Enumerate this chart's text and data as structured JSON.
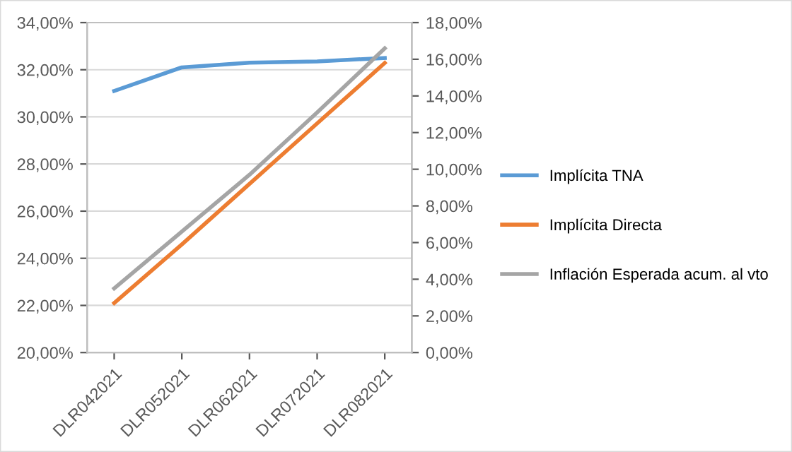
{
  "chart_data": {
    "type": "line",
    "categories": [
      "DLR042021",
      "DLR052021",
      "DLR062021",
      "DLR072021",
      "DLR082021"
    ],
    "series": [
      {
        "name": "Implícita TNA",
        "color": "#5b9bd5",
        "values": [
          31.1,
          32.1,
          32.3,
          32.35,
          32.5
        ]
      },
      {
        "name": "Implícita Directa",
        "color": "#ed7d31",
        "values": [
          2.7,
          5.9,
          9.2,
          12.5,
          15.8
        ],
        "axis": "y2"
      },
      {
        "name": "Inflación Esperada acum. al vto",
        "color": "#a5a5a5",
        "values": [
          3.5,
          6.6,
          9.7,
          13.1,
          16.6
        ],
        "axis": "y2"
      }
    ],
    "ylim": [
      20,
      34
    ],
    "yticks": [
      {
        "value": 20,
        "label": "20,00%"
      },
      {
        "value": 22,
        "label": "22,00%"
      },
      {
        "value": 24,
        "label": "24,00%"
      },
      {
        "value": 26,
        "label": "26,00%"
      },
      {
        "value": 28,
        "label": "28,00%"
      },
      {
        "value": 30,
        "label": "30,00%"
      },
      {
        "value": 32,
        "label": "32,00%"
      },
      {
        "value": 34,
        "label": "34,00%"
      }
    ],
    "y2lim": [
      0,
      18
    ],
    "y2ticks": [
      {
        "value": 0,
        "label": "0,00%"
      },
      {
        "value": 2,
        "label": "2,00%"
      },
      {
        "value": 4,
        "label": "4,00%"
      },
      {
        "value": 6,
        "label": "6,00%"
      },
      {
        "value": 8,
        "label": "8,00%"
      },
      {
        "value": 10,
        "label": "10,00%"
      },
      {
        "value": 12,
        "label": "12,00%"
      },
      {
        "value": 14,
        "label": "14,00%"
      },
      {
        "value": 16,
        "label": "16,00%"
      },
      {
        "value": 18,
        "label": "18,00%"
      }
    ],
    "grid": "y",
    "legend": "right",
    "marker": "none",
    "line_style": "solid"
  }
}
